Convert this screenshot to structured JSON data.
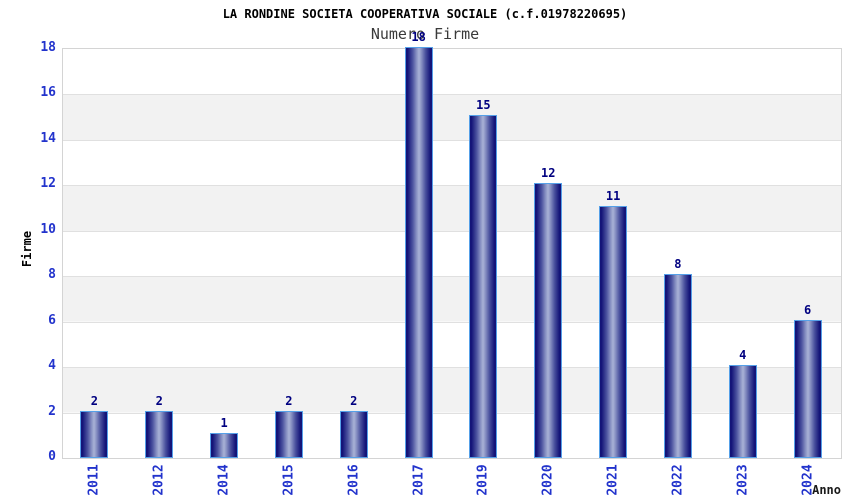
{
  "chart_data": {
    "type": "bar",
    "title": "LA RONDINE SOCIETA COOPERATIVA SOCIALE (c.f.01978220695)",
    "subtitle": "Numero Firme",
    "categories": [
      "2011",
      "2012",
      "2014",
      "2015",
      "2016",
      "2017",
      "2019",
      "2020",
      "2021",
      "2022",
      "2023",
      "2024"
    ],
    "values": [
      2,
      2,
      1,
      2,
      2,
      18,
      15,
      12,
      11,
      8,
      4,
      6
    ],
    "xlabel": "Anno",
    "ylabel": "Firme",
    "ylim": [
      0,
      18
    ],
    "ytick_step": 2,
    "yticks": [
      0,
      2,
      4,
      6,
      8,
      10,
      12,
      14,
      16,
      18
    ],
    "grid": "horizontal-bands-and-lines",
    "legend": "none",
    "bar_value_labels": true
  },
  "colors": {
    "bar_edge": "#141478",
    "bar_mid": "#4a519e",
    "bar_light": "#8d96c6",
    "bar_center": "#a9b2d6",
    "bar_border": "#55a0e8",
    "tick_label": "#2233cc",
    "value_label": "#000080",
    "band_gray": "#f2f2f2",
    "band_white": "#ffffff",
    "plot_border": "#d4d4d4",
    "gridline": "#e0e0e0",
    "title_color": "#000000",
    "subtitle_color": "#3a3a3a",
    "background": "#ffffff"
  }
}
